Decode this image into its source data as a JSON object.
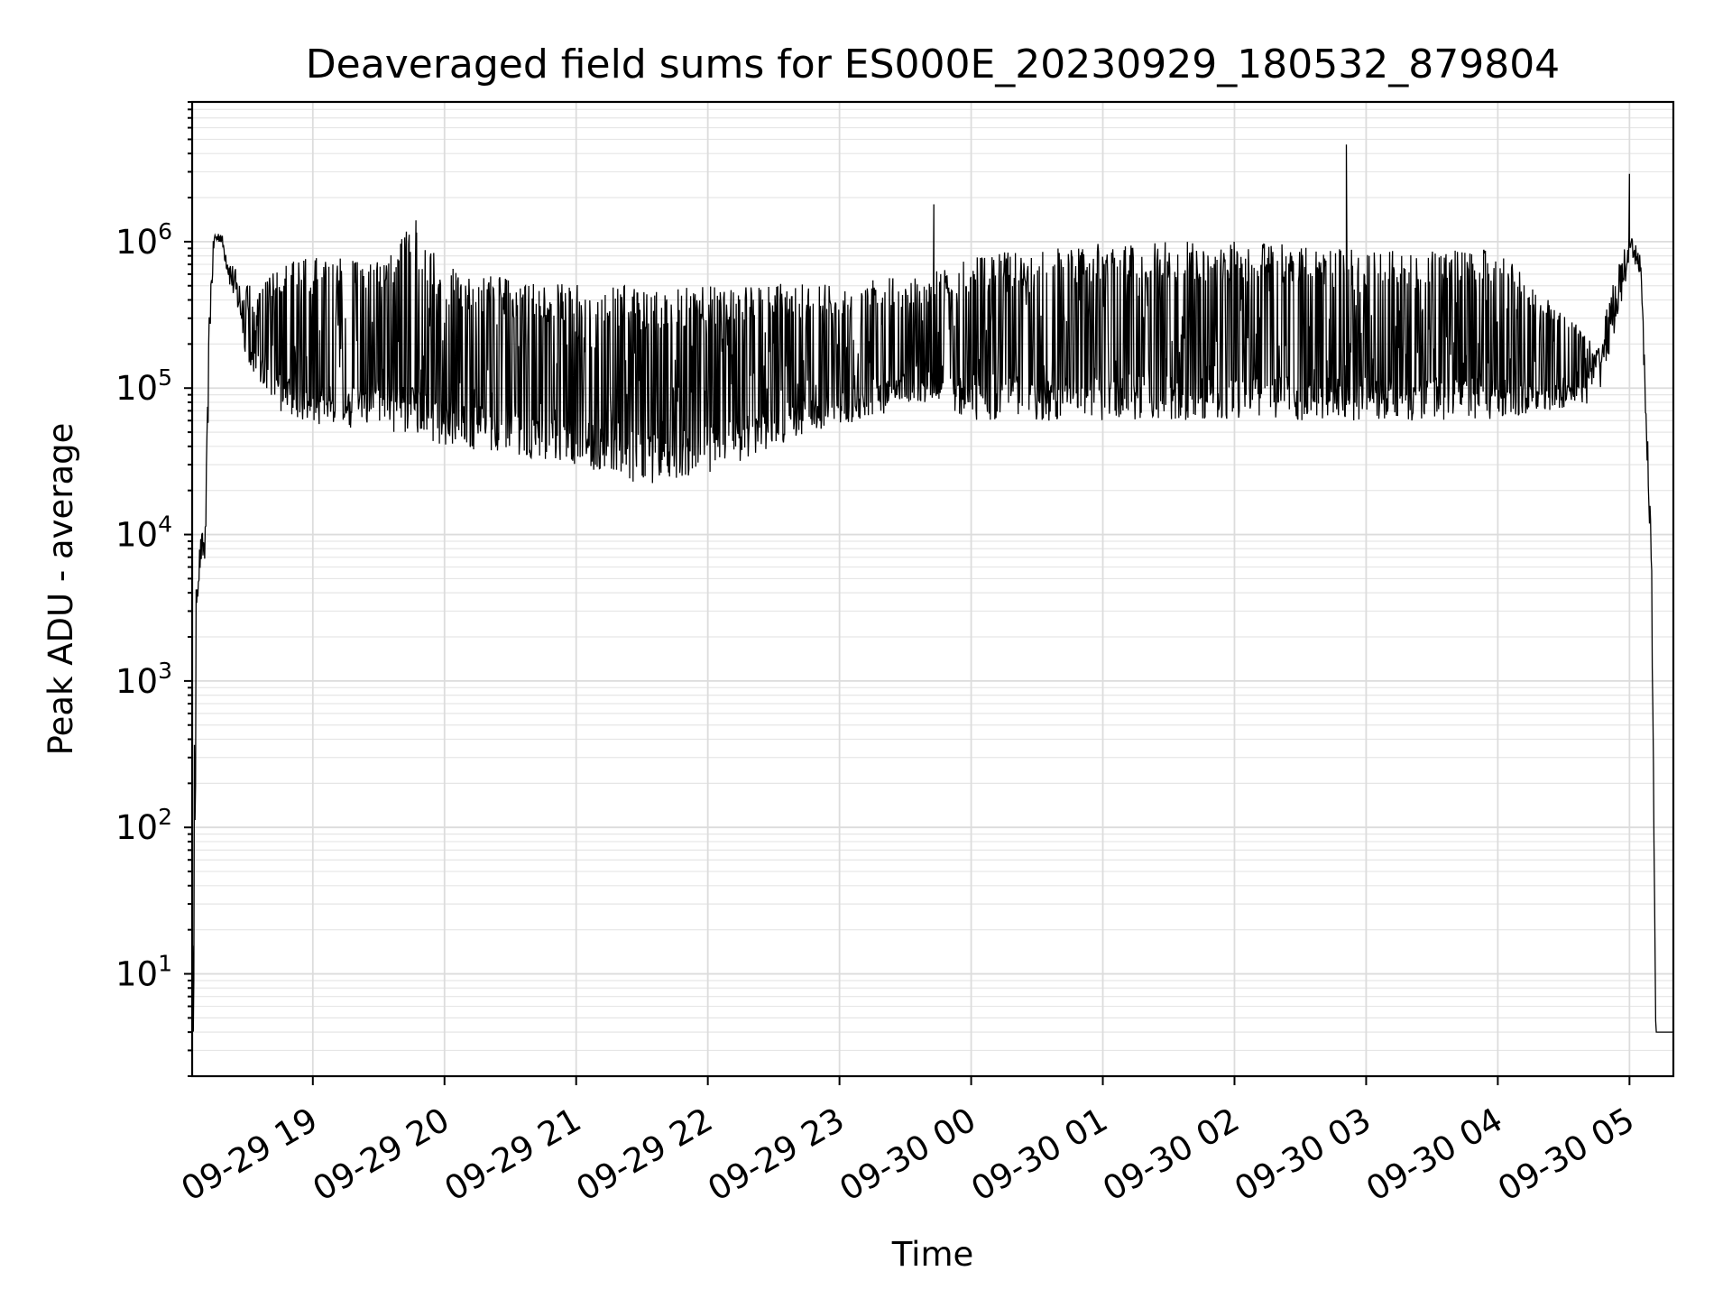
{
  "chart_data": {
    "type": "line",
    "title": "Deaveraged field sums for ES000E_20230929_180532_879804",
    "xlabel": "Time",
    "ylabel": "Peak ADU - average",
    "yscale": "log",
    "xlim": [
      "2023-09-29 18:05",
      "2023-09-30 05:20"
    ],
    "ylim": [
      2,
      9000000
    ],
    "grid": true,
    "x_tick_labels": [
      "09-29 19",
      "09-29 20",
      "09-29 21",
      "09-29 22",
      "09-29 23",
      "09-30 00",
      "09-30 01",
      "09-30 02",
      "09-30 03",
      "09-30 04",
      "09-30 05"
    ],
    "x_tick_times": [
      "2023-09-29 19:00",
      "2023-09-29 20:00",
      "2023-09-29 21:00",
      "2023-09-29 22:00",
      "2023-09-29 23:00",
      "2023-09-30 00:00",
      "2023-09-30 01:00",
      "2023-09-30 02:00",
      "2023-09-30 03:00",
      "2023-09-30 04:00",
      "2023-09-30 05:00"
    ],
    "y_ticks": [
      10,
      100,
      1000,
      10000,
      100000,
      1000000
    ],
    "y_tick_labels": [
      {
        "base": "10",
        "exp": "1"
      },
      {
        "base": "10",
        "exp": "2"
      },
      {
        "base": "10",
        "exp": "3"
      },
      {
        "base": "10",
        "exp": "4"
      },
      {
        "base": "10",
        "exp": "5"
      },
      {
        "base": "10",
        "exp": "6"
      }
    ],
    "series": [
      {
        "color": "#000000",
        "envelope": [
          {
            "time": "2023-09-29 18:05",
            "low": 4,
            "high": 4
          },
          {
            "time": "2023-09-29 18:06",
            "low": 4,
            "high": 1000
          },
          {
            "time": "2023-09-29 18:07",
            "low": 3000,
            "high": 6000
          },
          {
            "time": "2023-09-29 18:09",
            "low": 6000,
            "high": 10000
          },
          {
            "time": "2023-09-29 18:11",
            "low": 6000,
            "high": 12000
          },
          {
            "time": "2023-09-29 18:13",
            "low": 200000,
            "high": 500000
          },
          {
            "time": "2023-09-29 18:15",
            "low": 900000,
            "high": 1200000
          },
          {
            "time": "2023-09-29 18:18",
            "low": 1000000,
            "high": 1200000
          },
          {
            "time": "2023-09-29 18:22",
            "low": 500000,
            "high": 800000
          },
          {
            "time": "2023-09-29 18:26",
            "low": 300000,
            "high": 600000
          },
          {
            "time": "2023-09-29 18:30",
            "low": 150000,
            "high": 500000
          },
          {
            "time": "2023-09-29 18:45",
            "low": 70000,
            "high": 700000
          },
          {
            "time": "2023-09-29 19:00",
            "low": 55000,
            "high": 800000
          },
          {
            "time": "2023-09-29 19:30",
            "low": 50000,
            "high": 800000
          },
          {
            "time": "2023-09-29 19:45",
            "low": 50000,
            "high": 1300000
          },
          {
            "time": "2023-09-29 20:00",
            "low": 40000,
            "high": 700000
          },
          {
            "time": "2023-09-29 20:30",
            "low": 35000,
            "high": 550000
          },
          {
            "time": "2023-09-29 21:00",
            "low": 30000,
            "high": 520000
          },
          {
            "time": "2023-09-29 21:30",
            "low": 22000,
            "high": 500000
          },
          {
            "time": "2023-09-29 22:00",
            "low": 25000,
            "high": 500000
          },
          {
            "time": "2023-09-29 22:30",
            "low": 40000,
            "high": 520000
          },
          {
            "time": "2023-09-29 23:00",
            "low": 55000,
            "high": 520000
          },
          {
            "time": "2023-09-29 23:40",
            "low": 80000,
            "high": 600000
          },
          {
            "time": "2023-09-30 00:00",
            "low": 60000,
            "high": 800000
          },
          {
            "time": "2023-09-30 01:00",
            "low": 60000,
            "high": 1000000
          },
          {
            "time": "2023-09-30 02:00",
            "low": 60000,
            "high": 1000000
          },
          {
            "time": "2023-09-30 03:00",
            "low": 60000,
            "high": 900000
          },
          {
            "time": "2023-09-30 04:00",
            "low": 60000,
            "high": 900000
          },
          {
            "time": "2023-09-30 04:45",
            "low": 80000,
            "high": 200000
          },
          {
            "time": "2023-09-30 04:55",
            "low": 300000,
            "high": 700000
          },
          {
            "time": "2023-09-30 05:00",
            "low": 700000,
            "high": 1100000
          },
          {
            "time": "2023-09-30 05:05",
            "low": 600000,
            "high": 900000
          },
          {
            "time": "2023-09-30 05:10",
            "low": 4000,
            "high": 10000
          },
          {
            "time": "2023-09-30 05:12",
            "low": 4,
            "high": 4
          },
          {
            "time": "2023-09-30 05:20",
            "low": 4,
            "high": 4
          }
        ],
        "peaks": [
          {
            "time": "2023-09-29 19:47",
            "value": 1400000
          },
          {
            "time": "2023-09-29 23:43",
            "value": 1800000
          },
          {
            "time": "2023-09-30 02:51",
            "value": 4600000
          },
          {
            "time": "2023-09-30 05:00",
            "value": 2900000
          }
        ]
      }
    ]
  }
}
